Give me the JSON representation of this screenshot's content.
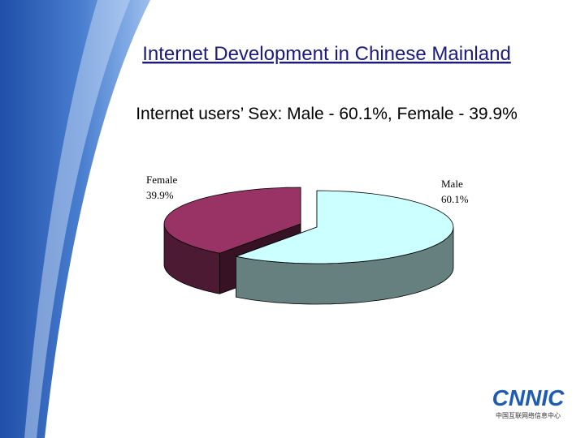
{
  "chart_data": {
    "type": "pie",
    "title": "Internet Development in Chinese Mainland",
    "subtitle": "Internet users’ Sex:  Male - 60.1%, Female - 39.9%",
    "categories": [
      "Male",
      "Female"
    ],
    "values": [
      60.1,
      39.9
    ],
    "value_labels": [
      "60.1%",
      "39.9%"
    ],
    "colors": [
      "#ccffff",
      "#993366"
    ]
  },
  "logo": {
    "text": "CNNIC",
    "subtext": "中国互联网络信息中心"
  }
}
